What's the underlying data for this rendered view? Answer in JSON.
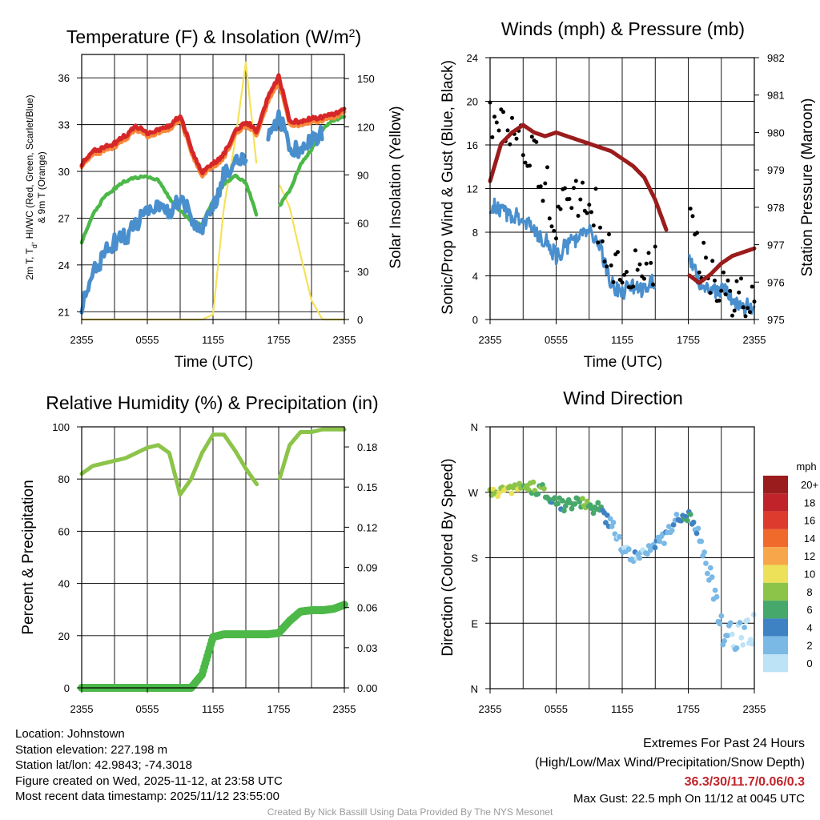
{
  "colors": {
    "temp_red": "#d62728",
    "temp_orange": "#f7883a",
    "dewpoint_blue": "#4a8fcd",
    "hiwc_green": "#4cb848",
    "solar_yellow": "#f5e25a",
    "wind_blue": "#4a8fcd",
    "pressure_maroon": "#9b1c1c",
    "rh_green": "#8cc44a",
    "precip_green": "#4cb848"
  },
  "panels": {
    "temp": {
      "title_prefix": "Temperature (F) & Insolation (W/m",
      "title_sup": "2",
      "title_suffix": ")",
      "xlabel": "Time (UTC)",
      "ylabel_right": "Solar Insolation (Yellow)",
      "ylabel_left_line2": "& 9m T (Orange)",
      "left_ticks": [
        "21",
        "24",
        "27",
        "30",
        "33",
        "36"
      ],
      "right_ticks": [
        "0",
        "30",
        "60",
        "90",
        "120",
        "150"
      ]
    },
    "wind": {
      "title": "Winds (mph) & Pressure (mb)",
      "xlabel": "Time (UTC)",
      "ylabel_left": "Sonic/Prop Wind & Gust (Blue, Black)",
      "ylabel_right": "Station Pressure (Maroon)",
      "left_ticks": [
        "0",
        "4",
        "8",
        "12",
        "16",
        "20",
        "24"
      ],
      "right_ticks": [
        "975",
        "976",
        "977",
        "978",
        "979",
        "980",
        "981",
        "982"
      ]
    },
    "rh": {
      "title": "Relative Humidity (%) & Precipitation (in)",
      "ylabel_left": "Percent & Precipitation",
      "left_ticks": [
        "0",
        "20",
        "40",
        "60",
        "80",
        "100"
      ],
      "right_ticks": [
        "0.00",
        "0.03",
        "0.06",
        "0.09",
        "0.12",
        "0.15",
        "0.18"
      ]
    },
    "dir": {
      "title": "Wind Direction",
      "ylabel_left": "Direction (Colored By Speed)",
      "dir_ticks": [
        "N",
        "E",
        "S",
        "W",
        "N"
      ],
      "colorbar_title": "mph",
      "colorbar_labels": [
        "20+",
        "18",
        "16",
        "14",
        "12",
        "10",
        "8",
        "6",
        "4",
        "2",
        "0"
      ],
      "colorbar_colors": [
        "#9b1c1c",
        "#c0242a",
        "#de3b2f",
        "#f06a2b",
        "#f7a64a",
        "#ece158",
        "#8cc44a",
        "#46a86a",
        "#3f82c4",
        "#7ab9e6",
        "#bde3f7"
      ]
    }
  },
  "x_tick_labels": [
    "2355",
    "0555",
    "1155",
    "1755",
    "2355"
  ],
  "chart_data": [
    {
      "type": "line",
      "title": "Temperature (F) & Insolation (W/m2)",
      "xlabel": "Time (UTC)",
      "ylabel": "2m T, Td, HI/WC (Red, Green, Scarlet/Blue) & 9m T (Orange)",
      "ylabel2": "Solar Insolation (Yellow)",
      "x_hours": [
        0,
        1,
        2,
        3,
        4,
        5,
        6,
        7,
        8,
        9,
        10,
        11,
        12,
        13,
        14,
        15,
        16,
        17,
        18,
        19,
        20,
        21,
        22,
        23,
        24
      ],
      "ylim": [
        20.5,
        37.5
      ],
      "y2lim": [
        0,
        165
      ],
      "series": [
        {
          "name": "2m Temperature (Red)",
          "color": "temp_red",
          "values": [
            30.5,
            31.3,
            31.5,
            31.8,
            32.3,
            32.9,
            32.5,
            32.6,
            32.9,
            33.6,
            31.5,
            29.9,
            30.5,
            31.1,
            32.5,
            33.2,
            32.6,
            34.7,
            36.1,
            33.3,
            33.1,
            33.4,
            33.5,
            33.7,
            34.0
          ]
        },
        {
          "name": "9m Temperature (Orange)",
          "color": "temp_orange",
          "values": [
            30.4,
            31.1,
            31.3,
            31.6,
            32.1,
            32.7,
            32.3,
            32.4,
            32.7,
            33.4,
            31.3,
            29.7,
            30.3,
            30.9,
            32.3,
            33.0,
            32.4,
            34.4,
            35.8,
            33.1,
            32.9,
            33.2,
            33.3,
            33.5,
            33.8
          ]
        },
        {
          "name": "HI/WC (Blue)",
          "color": "dewpoint_blue",
          "values": [
            21.5,
            23.5,
            24.6,
            25.5,
            25.8,
            26.6,
            27.8,
            27.5,
            27.3,
            28.4,
            27.1,
            26.2,
            27.7,
            29.8,
            30.4,
            31.0,
            null,
            32.0,
            33.5,
            31.8,
            31.0,
            32.0,
            32.6,
            null,
            null
          ]
        },
        {
          "name": "Dewpoint (Green)",
          "color": "hiwc_green",
          "values": [
            25.5,
            27.2,
            28.3,
            28.9,
            29.4,
            29.6,
            29.7,
            29.4,
            28.3,
            27.5,
            26.8,
            26.6,
            28.1,
            29.2,
            29.7,
            29.3,
            27.2,
            null,
            27.7,
            28.8,
            30.4,
            31.4,
            32.7,
            33.3,
            33.5
          ]
        },
        {
          "name": "Solar Insolation (Yellow)",
          "color": "solar_yellow",
          "axis": "right",
          "values": [
            0,
            0,
            0,
            0,
            0,
            0,
            0,
            0,
            0,
            0,
            0,
            0,
            3,
            70,
            110,
            160,
            95,
            null,
            85,
            70,
            40,
            12,
            0,
            0,
            0
          ]
        }
      ]
    },
    {
      "type": "scatter",
      "title": "Winds (mph) & Pressure (mb)",
      "xlabel": "Time (UTC)",
      "ylabel": "Sonic/Prop Wind & Gust (Blue, Black)",
      "ylabel2": "Station Pressure (Maroon)",
      "x_hours": [
        0,
        1,
        2,
        3,
        4,
        5,
        6,
        7,
        8,
        9,
        10,
        11,
        12,
        13,
        14,
        15,
        16,
        17,
        18,
        19,
        20,
        21,
        22,
        23,
        24
      ],
      "ylim": [
        0,
        24
      ],
      "y2lim": [
        975,
        982
      ],
      "series": [
        {
          "name": "Sonic/Prop Wind (Blue)",
          "color": "wind_blue",
          "values": [
            10.5,
            10.0,
            9.6,
            9.2,
            7.9,
            7.2,
            5.8,
            6.8,
            7.5,
            8.0,
            6.5,
            3.2,
            2.5,
            3.0,
            2.8,
            3.5,
            null,
            null,
            5.8,
            3.5,
            2.5,
            2.8,
            1.8,
            1.2,
            1.0
          ]
        },
        {
          "name": "Gust (Black)",
          "color": "#000000",
          "values": [
            19.0,
            17.5,
            18.0,
            17.0,
            14.5,
            12.5,
            9.5,
            12.5,
            11.5,
            12.0,
            8.5,
            5.0,
            4.0,
            4.5,
            3.8,
            4.5,
            null,
            null,
            9.0,
            6.0,
            3.8,
            3.5,
            2.5,
            2.2,
            1.5
          ]
        },
        {
          "name": "Station Pressure (Maroon)",
          "color": "pressure_maroon",
          "axis": "right",
          "values": [
            978.7,
            979.7,
            980.0,
            980.2,
            980.0,
            979.9,
            980.0,
            979.9,
            979.8,
            979.7,
            979.6,
            979.5,
            979.3,
            979.1,
            978.8,
            978.2,
            977.4,
            null,
            976.2,
            975.98,
            976.2,
            976.5,
            976.7,
            976.8,
            976.9
          ]
        }
      ]
    },
    {
      "type": "line",
      "title": "Relative Humidity (%) & Precipitation (in)",
      "ylabel": "Percent & Precipitation",
      "x_hours": [
        0,
        1,
        2,
        3,
        4,
        5,
        6,
        7,
        8,
        9,
        10,
        11,
        12,
        13,
        14,
        15,
        16,
        17,
        18,
        19,
        20,
        21,
        22,
        23,
        24
      ],
      "ylim": [
        0,
        100
      ],
      "y2lim": [
        0,
        0.195
      ],
      "series": [
        {
          "name": "Relative Humidity",
          "color": "rh_green",
          "values": [
            82,
            85,
            86,
            87,
            88,
            90,
            92,
            93,
            90,
            74,
            80,
            90,
            97,
            97,
            91,
            84,
            78,
            null,
            79,
            93,
            98,
            98,
            99,
            99,
            99
          ]
        },
        {
          "name": "Precipitation",
          "color": "precip_green",
          "axis": "right",
          "values": [
            0,
            0,
            0,
            0,
            0,
            0,
            0,
            0,
            0,
            0,
            0,
            0.01,
            0.038,
            0.04,
            0.04,
            0.04,
            0.04,
            0.04,
            0.041,
            0.05,
            0.057,
            0.058,
            0.058,
            0.059,
            0.062
          ]
        }
      ]
    },
    {
      "type": "scatter",
      "title": "Wind Direction",
      "ylabel": "Direction (Colored By Speed)",
      "x_hours": [
        0,
        1,
        2,
        3,
        4,
        5,
        6,
        7,
        8,
        9,
        10,
        11,
        12,
        13,
        14,
        15,
        16,
        17,
        18,
        19,
        20,
        21,
        22,
        23,
        24
      ],
      "ylim": [
        0,
        360
      ],
      "y_labels": [
        "N",
        "E",
        "S",
        "W",
        "N"
      ],
      "series": [
        {
          "name": "Wind Direction (deg)",
          "values": [
            272,
            270,
            275,
            278,
            276,
            272,
            258,
            252,
            258,
            250,
            246,
            228,
            195,
            180,
            190,
            200,
            210,
            232,
            240,
            210,
            150,
            85,
            70,
            75,
            80
          ]
        },
        {
          "name": "Wind Speed (mph) for color",
          "values": [
            10.5,
            10.0,
            9.6,
            9.2,
            7.9,
            7.2,
            5.8,
            6.8,
            7.5,
            8.0,
            6.5,
            3.2,
            2.5,
            3.0,
            2.8,
            3.5,
            3.5,
            3.5,
            5.8,
            3.5,
            2.5,
            2.8,
            1.8,
            1.2,
            1.0
          ]
        }
      ],
      "colorbar": {
        "title": "mph",
        "bins": [
          0,
          2,
          4,
          6,
          8,
          10,
          12,
          14,
          16,
          18,
          20
        ]
      }
    }
  ],
  "station_info": {
    "location": "Location: Johnstown",
    "elevation": "Station elevation: 227.198 m",
    "latlon": "Station lat/lon: 42.9843; -74.3018",
    "created": "Figure created on Wed, 2025-11-12, at 23:58 UTC",
    "recent": "Most recent data timestamp: 2025/11/12 23:55:00"
  },
  "extremes": {
    "title": "Extremes For Past 24 Hours",
    "subtitle": "(High/Low/Max Wind/Precipitation/Snow Depth)",
    "values": "36.3/30/11.7/0.06/0.3",
    "gust": "Max Gust: 22.5 mph On 11/12 at 0045 UTC"
  },
  "credit": "Created By Nick Bassill Using Data Provided By The NYS Mesonet"
}
